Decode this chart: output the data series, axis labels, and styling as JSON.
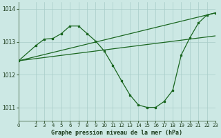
{
  "background_color": "#cce8e4",
  "grid_color": "#a8ccc8",
  "line_color": "#1a6620",
  "title": "Graphe pression niveau de la mer (hPa)",
  "ylim": [
    1010.6,
    1014.2
  ],
  "xlim": [
    0,
    23
  ],
  "yticks": [
    1011,
    1012,
    1013,
    1014
  ],
  "xticks": [
    0,
    2,
    3,
    4,
    5,
    6,
    7,
    8,
    9,
    10,
    11,
    12,
    13,
    14,
    15,
    16,
    17,
    18,
    19,
    20,
    21,
    22,
    23
  ],
  "line1_x": [
    0,
    23
  ],
  "line1_y": [
    1012.42,
    1013.88
  ],
  "line2_x": [
    0,
    23
  ],
  "line2_y": [
    1012.42,
    1013.18
  ],
  "line3_x": [
    0,
    2,
    3,
    4,
    5,
    6,
    7,
    8,
    9,
    10,
    11,
    12,
    13,
    14,
    15,
    16,
    17,
    18,
    19,
    20,
    21,
    22,
    23
  ],
  "line3_y": [
    1012.42,
    1012.88,
    1013.08,
    1013.1,
    1013.25,
    1013.48,
    1013.48,
    1013.25,
    1013.02,
    1012.72,
    1012.28,
    1011.82,
    1011.38,
    1011.07,
    1011.0,
    1011.0,
    1011.18,
    1011.52,
    1012.6,
    1013.12,
    1013.57,
    1013.82,
    1013.88
  ]
}
